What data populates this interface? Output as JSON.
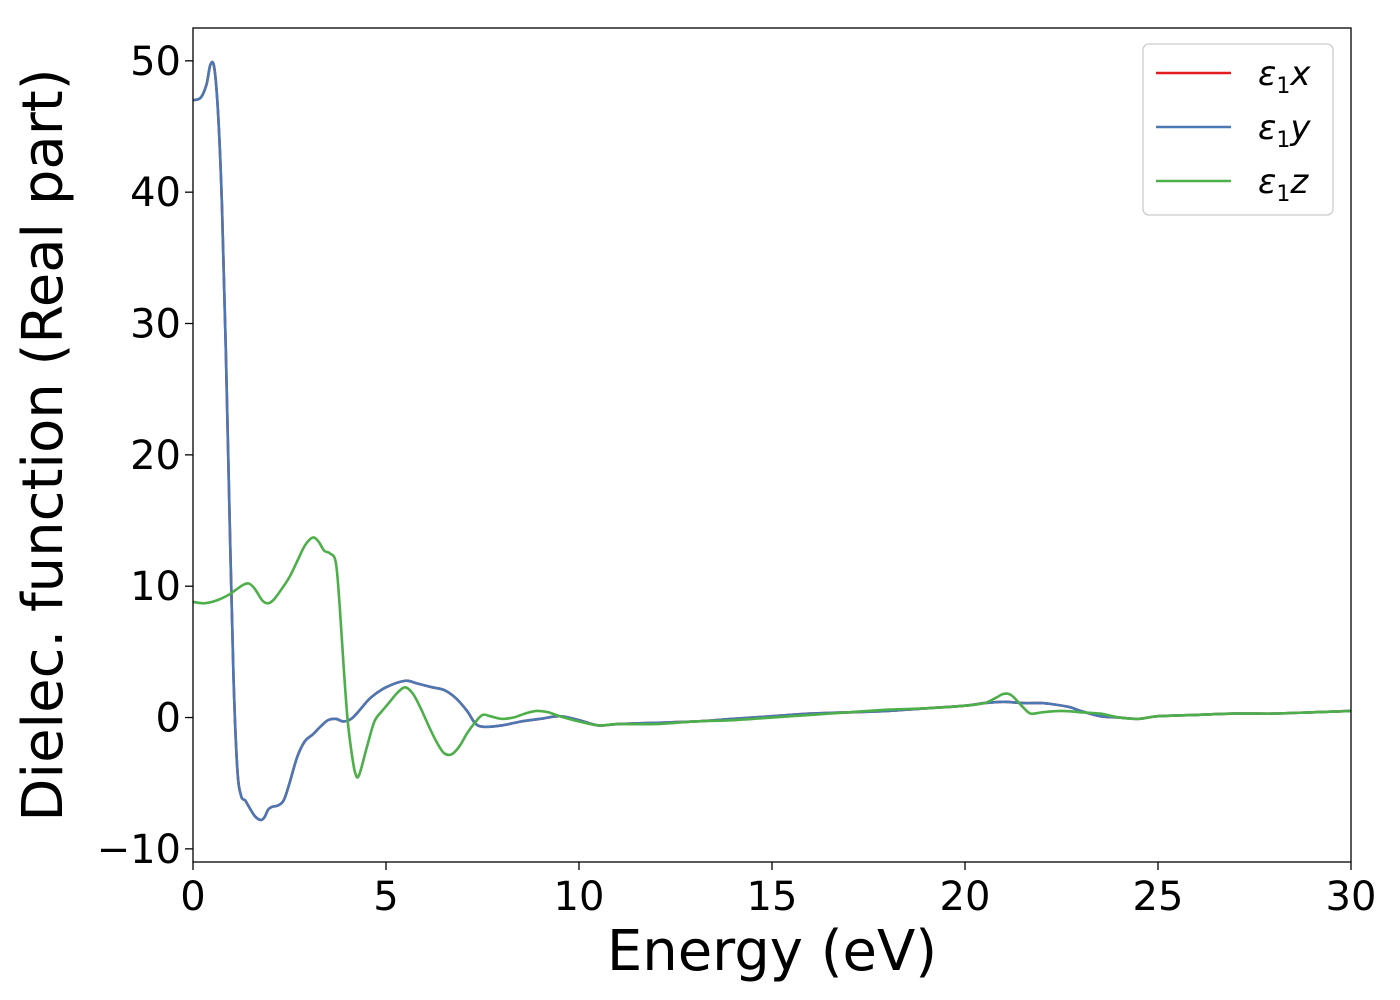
{
  "chart_data": {
    "type": "line",
    "xlabel": "Energy (eV)",
    "ylabel": "Dielec. function (Real part)",
    "xlim": [
      0,
      30
    ],
    "ylim": [
      -11,
      52.5
    ],
    "xticks": [
      0,
      5,
      10,
      15,
      20,
      25,
      30
    ],
    "xtick_labels": [
      "0",
      "5",
      "10",
      "15",
      "20",
      "25",
      "30"
    ],
    "yticks": [
      -10,
      0,
      10,
      20,
      30,
      40,
      50
    ],
    "ytick_labels": [
      "−10",
      "0",
      "10",
      "20",
      "30",
      "40",
      "50"
    ],
    "grid": false,
    "legend_position": "top-right",
    "series": [
      {
        "name": "ε₁x",
        "name_base": "ε",
        "name_sub": "1",
        "name_suffix": "x",
        "color": "#e41a1c",
        "x": [
          0,
          0.2,
          0.35,
          0.45,
          0.55,
          0.65,
          0.75,
          0.85,
          0.95,
          1.05,
          1.15,
          1.25,
          1.35,
          1.45,
          1.6,
          1.75,
          1.85,
          1.95,
          2.05,
          2.2,
          2.35,
          2.5,
          2.7,
          2.9,
          3.1,
          3.3,
          3.5,
          3.7,
          3.9,
          4.1,
          4.3,
          4.6,
          5.0,
          5.5,
          5.8,
          6.2,
          6.5,
          6.8,
          7.1,
          7.3,
          7.5,
          8.0,
          8.5,
          9.0,
          9.5,
          10.0,
          10.5,
          11.0,
          12.0,
          13.0,
          14.0,
          15.0,
          16.0,
          17.0,
          18.0,
          19.0,
          20.0,
          20.5,
          21.0,
          21.5,
          22.0,
          22.3,
          22.7,
          23.0,
          23.5,
          24.0,
          24.5,
          25.0,
          26.0,
          27.0,
          28.0,
          29.0,
          30.0
        ],
        "values": [
          47.0,
          47.2,
          48.2,
          49.7,
          49.5,
          46.0,
          39.0,
          28.0,
          15.0,
          3.0,
          -4.0,
          -6.0,
          -6.3,
          -6.8,
          -7.5,
          -7.8,
          -7.6,
          -7.0,
          -6.8,
          -6.7,
          -6.3,
          -5.0,
          -3.0,
          -1.8,
          -1.3,
          -0.7,
          -0.2,
          -0.1,
          -0.3,
          -0.1,
          0.5,
          1.5,
          2.3,
          2.8,
          2.6,
          2.3,
          2.1,
          1.5,
          0.5,
          -0.4,
          -0.7,
          -0.6,
          -0.3,
          -0.1,
          0.1,
          -0.2,
          -0.6,
          -0.5,
          -0.4,
          -0.3,
          -0.1,
          0.1,
          0.3,
          0.4,
          0.5,
          0.7,
          0.9,
          1.1,
          1.2,
          1.1,
          1.1,
          1.0,
          0.8,
          0.5,
          0.1,
          0.0,
          -0.1,
          0.1,
          0.2,
          0.3,
          0.3,
          0.4,
          0.5
        ]
      },
      {
        "name": "ε₁y",
        "name_base": "ε",
        "name_sub": "1",
        "name_suffix": "y",
        "color": "#4a78b4",
        "x": [
          0,
          0.2,
          0.35,
          0.45,
          0.55,
          0.65,
          0.75,
          0.85,
          0.95,
          1.05,
          1.15,
          1.25,
          1.35,
          1.45,
          1.6,
          1.75,
          1.85,
          1.95,
          2.05,
          2.2,
          2.35,
          2.5,
          2.7,
          2.9,
          3.1,
          3.3,
          3.5,
          3.7,
          3.9,
          4.1,
          4.3,
          4.6,
          5.0,
          5.5,
          5.8,
          6.2,
          6.5,
          6.8,
          7.1,
          7.3,
          7.5,
          8.0,
          8.5,
          9.0,
          9.5,
          10.0,
          10.5,
          11.0,
          12.0,
          13.0,
          14.0,
          15.0,
          16.0,
          17.0,
          18.0,
          19.0,
          20.0,
          20.5,
          21.0,
          21.5,
          22.0,
          22.3,
          22.7,
          23.0,
          23.5,
          24.0,
          24.5,
          25.0,
          26.0,
          27.0,
          28.0,
          29.0,
          30.0
        ],
        "values": [
          47.0,
          47.2,
          48.2,
          49.7,
          49.5,
          46.0,
          39.0,
          28.0,
          15.0,
          3.0,
          -4.0,
          -6.0,
          -6.3,
          -6.8,
          -7.5,
          -7.8,
          -7.6,
          -7.0,
          -6.8,
          -6.7,
          -6.3,
          -5.0,
          -3.0,
          -1.8,
          -1.3,
          -0.7,
          -0.2,
          -0.1,
          -0.3,
          -0.1,
          0.5,
          1.5,
          2.3,
          2.8,
          2.6,
          2.3,
          2.1,
          1.5,
          0.5,
          -0.4,
          -0.7,
          -0.6,
          -0.3,
          -0.1,
          0.1,
          -0.2,
          -0.6,
          -0.5,
          -0.4,
          -0.3,
          -0.1,
          0.1,
          0.3,
          0.4,
          0.5,
          0.7,
          0.9,
          1.1,
          1.2,
          1.1,
          1.1,
          1.0,
          0.8,
          0.5,
          0.1,
          0.0,
          -0.1,
          0.1,
          0.2,
          0.3,
          0.3,
          0.4,
          0.5
        ]
      },
      {
        "name": "ε₁z",
        "name_base": "ε",
        "name_sub": "1",
        "name_suffix": "z",
        "color": "#4daf4a",
        "x": [
          0,
          0.3,
          0.6,
          0.9,
          1.1,
          1.3,
          1.45,
          1.6,
          1.8,
          1.95,
          2.1,
          2.3,
          2.5,
          2.7,
          2.9,
          3.1,
          3.25,
          3.4,
          3.55,
          3.7,
          3.8,
          3.9,
          4.0,
          4.1,
          4.2,
          4.3,
          4.5,
          4.7,
          4.9,
          5.1,
          5.3,
          5.5,
          5.7,
          5.9,
          6.1,
          6.3,
          6.5,
          6.7,
          6.9,
          7.1,
          7.3,
          7.5,
          7.7,
          8.0,
          8.3,
          8.6,
          8.9,
          9.2,
          9.5,
          10.0,
          10.5,
          11.0,
          12.0,
          13.0,
          14.0,
          15.0,
          16.0,
          17.0,
          18.0,
          19.0,
          20.0,
          20.5,
          20.8,
          21.0,
          21.2,
          21.5,
          21.7,
          22.0,
          22.5,
          23.0,
          23.5,
          24.0,
          24.5,
          25.0,
          26.0,
          27.0,
          28.0,
          29.0,
          30.0
        ],
        "values": [
          8.8,
          8.7,
          8.9,
          9.3,
          9.7,
          10.1,
          10.2,
          9.8,
          8.9,
          8.7,
          9.0,
          9.8,
          10.7,
          11.9,
          13.1,
          13.7,
          13.4,
          12.7,
          12.5,
          11.8,
          8.5,
          4.0,
          0.0,
          -2.5,
          -4.2,
          -4.4,
          -2.3,
          -0.3,
          0.5,
          1.2,
          1.9,
          2.3,
          1.8,
          0.7,
          -0.6,
          -1.8,
          -2.7,
          -2.8,
          -2.2,
          -1.2,
          -0.4,
          0.2,
          0.1,
          -0.1,
          0.0,
          0.3,
          0.5,
          0.4,
          0.1,
          -0.3,
          -0.6,
          -0.5,
          -0.5,
          -0.3,
          -0.2,
          0.0,
          0.2,
          0.4,
          0.6,
          0.7,
          0.9,
          1.1,
          1.5,
          1.8,
          1.7,
          0.8,
          0.3,
          0.4,
          0.5,
          0.4,
          0.3,
          0.0,
          -0.1,
          0.1,
          0.2,
          0.3,
          0.3,
          0.4,
          0.5
        ]
      }
    ]
  }
}
